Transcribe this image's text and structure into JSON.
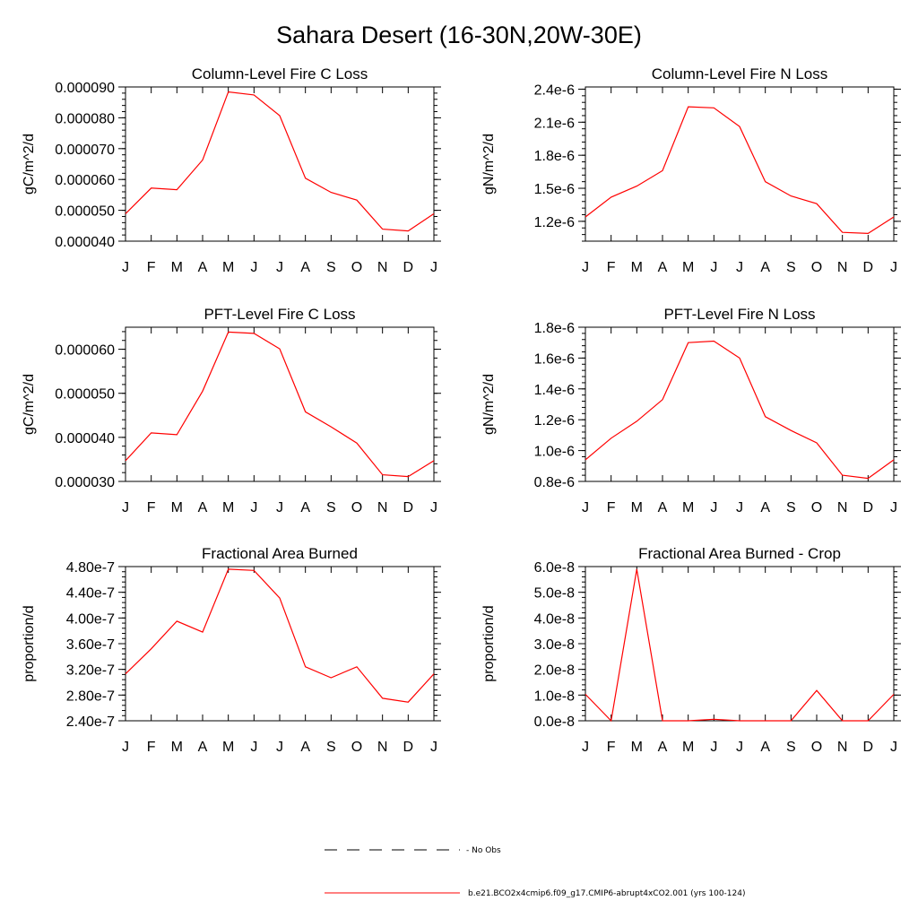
{
  "title": "Sahara Desert (16-30N,20W-30E)",
  "chart_data": [
    {
      "type": "line",
      "title": "Column-Level Fire C Loss",
      "xlabel": "",
      "ylabel": "gC/m^2/d",
      "categories": [
        "J",
        "F",
        "M",
        "A",
        "M",
        "J",
        "J",
        "A",
        "S",
        "O",
        "N",
        "D",
        "J"
      ],
      "ylim": [
        4e-05,
        9e-05
      ],
      "yticks": [
        4e-05,
        5e-05,
        6e-05,
        7e-05,
        8e-05,
        9e-05
      ],
      "ytick_labels": [
        "0.000040",
        "0.000050",
        "0.000060",
        "0.000070",
        "0.000080",
        "0.000090"
      ],
      "series": [
        {
          "name": "b.e21.BCO2x4cmip6.f09_g17.CMIP6-abrupt4xCO2.001 (yrs 100-124)",
          "color": "#ff0000",
          "values": [
            4.89e-05,
            5.72e-05,
            5.67e-05,
            6.63e-05,
            8.84e-05,
            8.74e-05,
            8.07e-05,
            6.04e-05,
            5.58e-05,
            5.33e-05,
            4.39e-05,
            4.33e-05,
            4.89e-05
          ]
        }
      ]
    },
    {
      "type": "line",
      "title": "Column-Level Fire N Loss",
      "xlabel": "",
      "ylabel": "gN/m^2/d",
      "categories": [
        "J",
        "F",
        "M",
        "A",
        "M",
        "J",
        "J",
        "A",
        "S",
        "O",
        "N",
        "D",
        "J"
      ],
      "ylim": [
        1.02e-06,
        2.42e-06
      ],
      "yticks": [
        1.2e-06,
        1.5e-06,
        1.8e-06,
        2.1e-06,
        2.4e-06
      ],
      "ytick_labels": [
        "1.2e-6",
        "1.5e-6",
        "1.8e-6",
        "2.1e-6",
        "2.4e-6"
      ],
      "series": [
        {
          "name": "b.e21.BCO2x4cmip6.f09_g17.CMIP6-abrupt4xCO2.001 (yrs 100-124)",
          "color": "#ff0000",
          "values": [
            1.24e-06,
            1.42e-06,
            1.52e-06,
            1.66e-06,
            2.24e-06,
            2.23e-06,
            2.06e-06,
            1.56e-06,
            1.43e-06,
            1.36e-06,
            1.1e-06,
            1.09e-06,
            1.24e-06
          ]
        }
      ]
    },
    {
      "type": "line",
      "title": "PFT-Level Fire C Loss",
      "xlabel": "",
      "ylabel": "gC/m^2/d",
      "categories": [
        "J",
        "F",
        "M",
        "A",
        "M",
        "J",
        "J",
        "A",
        "S",
        "O",
        "N",
        "D",
        "J"
      ],
      "ylim": [
        3e-05,
        6.5e-05
      ],
      "yticks": [
        3e-05,
        4e-05,
        5e-05,
        6e-05
      ],
      "ytick_labels": [
        "0.000030",
        "0.000040",
        "0.000050",
        "0.000060"
      ],
      "series": [
        {
          "name": "b.e21.BCO2x4cmip6.f09_g17.CMIP6-abrupt4xCO2.001 (yrs 100-124)",
          "color": "#ff0000",
          "values": [
            3.47e-05,
            4.1e-05,
            4.06e-05,
            5.05e-05,
            6.39e-05,
            6.36e-05,
            6.01e-05,
            4.58e-05,
            4.24e-05,
            3.87e-05,
            3.15e-05,
            3.11e-05,
            3.47e-05
          ]
        }
      ]
    },
    {
      "type": "line",
      "title": "PFT-Level Fire N Loss",
      "xlabel": "",
      "ylabel": "gN/m^2/d",
      "categories": [
        "J",
        "F",
        "M",
        "A",
        "M",
        "J",
        "J",
        "A",
        "S",
        "O",
        "N",
        "D",
        "J"
      ],
      "ylim": [
        8e-07,
        1.8e-06
      ],
      "yticks": [
        8e-07,
        1e-06,
        1.2e-06,
        1.4e-06,
        1.6e-06,
        1.8e-06
      ],
      "ytick_labels": [
        "0.8e-6",
        "1.0e-6",
        "1.2e-6",
        "1.4e-6",
        "1.6e-6",
        "1.8e-6"
      ],
      "series": [
        {
          "name": "b.e21.BCO2x4cmip6.f09_g17.CMIP6-abrupt4xCO2.001 (yrs 100-124)",
          "color": "#ff0000",
          "values": [
            9.4e-07,
            1.08e-06,
            1.19e-06,
            1.33e-06,
            1.7e-06,
            1.71e-06,
            1.6e-06,
            1.22e-06,
            1.13e-06,
            1.05e-06,
            8.4e-07,
            8.2e-07,
            9.4e-07
          ]
        }
      ]
    },
    {
      "type": "line",
      "title": "Fractional Area Burned",
      "xlabel": "",
      "ylabel": "proportion/d",
      "categories": [
        "J",
        "F",
        "M",
        "A",
        "M",
        "J",
        "J",
        "A",
        "S",
        "O",
        "N",
        "D",
        "J"
      ],
      "ylim": [
        2.4e-07,
        4.8e-07
      ],
      "yticks": [
        2.4e-07,
        2.8e-07,
        3.2e-07,
        3.6e-07,
        4e-07,
        4.4e-07,
        4.8e-07
      ],
      "ytick_labels": [
        "2.40e-7",
        "2.80e-7",
        "3.20e-7",
        "3.60e-7",
        "4.00e-7",
        "4.40e-7",
        "4.80e-7"
      ],
      "series": [
        {
          "name": "b.e21.BCO2x4cmip6.f09_g17.CMIP6-abrupt4xCO2.001 (yrs 100-124)",
          "color": "#ff0000",
          "values": [
            3.13e-07,
            3.52e-07,
            3.95e-07,
            3.78e-07,
            4.76e-07,
            4.74e-07,
            4.31e-07,
            3.24e-07,
            3.07e-07,
            3.24e-07,
            2.75e-07,
            2.69e-07,
            3.13e-07
          ]
        }
      ]
    },
    {
      "type": "line",
      "title": "Fractional Area Burned - Crop",
      "xlabel": "",
      "ylabel": "proportion/d",
      "categories": [
        "J",
        "F",
        "M",
        "A",
        "M",
        "J",
        "J",
        "A",
        "S",
        "O",
        "N",
        "D",
        "J"
      ],
      "ylim": [
        0,
        6e-08
      ],
      "yticks": [
        0,
        1e-08,
        2e-08,
        3e-08,
        4e-08,
        5e-08,
        6e-08
      ],
      "ytick_labels": [
        "0.0e-8",
        "1.0e-8",
        "2.0e-8",
        "3.0e-8",
        "4.0e-8",
        "5.0e-8",
        "6.0e-8"
      ],
      "series": [
        {
          "name": "b.e21.BCO2x4cmip6.f09_g17.CMIP6-abrupt4xCO2.001 (yrs 100-124)",
          "color": "#ff0000",
          "values": [
            1.03e-08,
            0.0,
            5.9e-08,
            0.0,
            0.0,
            6e-10,
            0.0,
            0.0,
            0.0,
            1.18e-08,
            0.0,
            0.0,
            1.03e-08
          ]
        }
      ]
    }
  ],
  "legend": {
    "items": [
      {
        "label": "No Obs",
        "color": "#000000",
        "style": "dashed"
      },
      {
        "label": "b.e21.BCO2x4cmip6.f09_g17.CMIP6-abrupt4xCO2.001 (yrs 100-124)",
        "color": "#ff0000",
        "style": "solid"
      }
    ]
  }
}
